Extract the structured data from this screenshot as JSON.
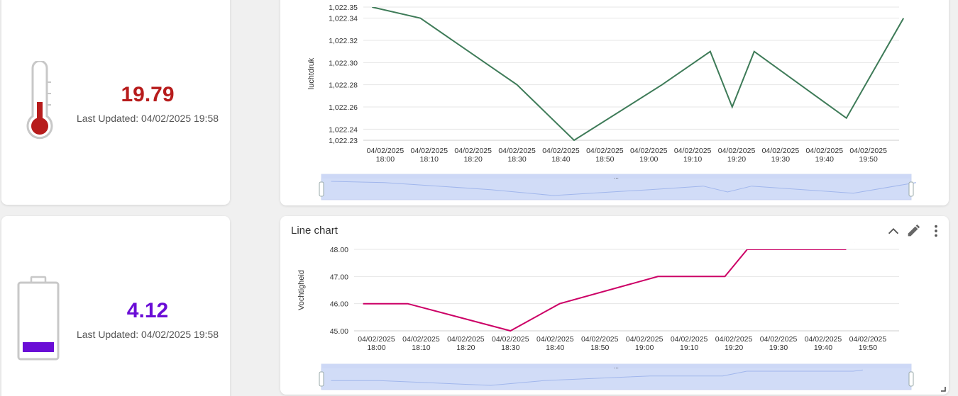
{
  "widgets": {
    "temperature": {
      "value": "19.79",
      "last_updated": "Last Updated: 04/02/2025 19:58",
      "value_color": "#b71c1c",
      "icon": "thermometer-icon"
    },
    "battery": {
      "value": "4.12",
      "last_updated": "Last Updated: 04/02/2025 19:58",
      "value_color": "#6a0dd6",
      "icon": "battery-icon"
    }
  },
  "pressure_chart": {
    "icons": [
      "zoom-handle-icon"
    ]
  },
  "humidity_chart": {
    "title": "Line chart",
    "icons": [
      "chevron-up-icon",
      "pencil-icon",
      "more-vert-icon"
    ]
  },
  "chart_data": [
    {
      "type": "line",
      "title": "",
      "xlabel": "",
      "ylabel": "luchtdruk",
      "ylim": [
        1022.23,
        1022.35
      ],
      "y_ticks": [
        "1,022.35",
        "1,022.34",
        "1,022.32",
        "1,022.30",
        "1,022.28",
        "1,022.26",
        "1,022.24",
        "1,022.23"
      ],
      "x_ticks": [
        "04/02/2025 18:00",
        "04/02/2025 18:10",
        "04/02/2025 18:20",
        "04/02/2025 18:30",
        "04/02/2025 18:40",
        "04/02/2025 18:50",
        "04/02/2025 19:00",
        "04/02/2025 19:10",
        "04/02/2025 19:20",
        "04/02/2025 19:30",
        "04/02/2025 19:40",
        "04/02/2025 19:50"
      ],
      "grid": true,
      "color": "#3e7b58",
      "points": [
        {
          "x": "04/02/2025 17:57",
          "y": 1022.35
        },
        {
          "x": "04/02/2025 18:08",
          "y": 1022.34
        },
        {
          "x": "04/02/2025 18:30",
          "y": 1022.28
        },
        {
          "x": "04/02/2025 18:43",
          "y": 1022.23
        },
        {
          "x": "04/02/2025 19:03",
          "y": 1022.28
        },
        {
          "x": "04/02/2025 19:14",
          "y": 1022.31
        },
        {
          "x": "04/02/2025 19:19",
          "y": 1022.26
        },
        {
          "x": "04/02/2025 19:24",
          "y": 1022.31
        },
        {
          "x": "04/02/2025 19:45",
          "y": 1022.25
        },
        {
          "x": "04/02/2025 19:58",
          "y": 1022.34
        }
      ]
    },
    {
      "type": "line",
      "title": "Line chart",
      "xlabel": "",
      "ylabel": "Vochtigheid",
      "ylim": [
        45.0,
        48.0
      ],
      "y_ticks": [
        "48.00",
        "47.00",
        "46.00",
        "45.00"
      ],
      "x_ticks": [
        "04/02/2025 18:00",
        "04/02/2025 18:10",
        "04/02/2025 18:20",
        "04/02/2025 18:30",
        "04/02/2025 18:40",
        "04/02/2025 18:50",
        "04/02/2025 19:00",
        "04/02/2025 19:10",
        "04/02/2025 19:20",
        "04/02/2025 19:30",
        "04/02/2025 19:40",
        "04/02/2025 19:50"
      ],
      "grid": true,
      "color": "#cc0066",
      "points": [
        {
          "x": "04/02/2025 17:57",
          "y": 46.0
        },
        {
          "x": "04/02/2025 18:07",
          "y": 46.0
        },
        {
          "x": "04/02/2025 18:30",
          "y": 45.0
        },
        {
          "x": "04/02/2025 18:41",
          "y": 46.0
        },
        {
          "x": "04/02/2025 19:03",
          "y": 47.0
        },
        {
          "x": "04/02/2025 19:18",
          "y": 47.0
        },
        {
          "x": "04/02/2025 19:23",
          "y": 48.0
        },
        {
          "x": "04/02/2025 19:45",
          "y": 48.0
        },
        {
          "x": "04/02/2025 19:47",
          "y": 48.25
        }
      ]
    }
  ]
}
